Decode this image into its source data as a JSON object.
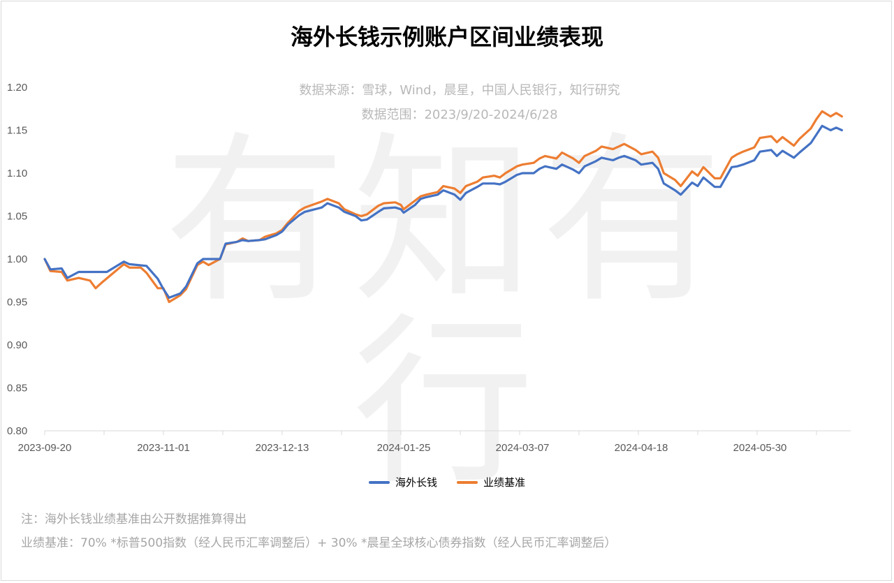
{
  "title": "海外长钱示例账户区间业绩表现",
  "source_line": "数据来源：雪球，Wind，晨星，中国人民银行，知行研究",
  "range_line": "数据范围：2023/9/20-2024/6/28",
  "watermark": "有知有行",
  "notes": [
    "注：海外长钱业绩基准由公开数据推算得出",
    "业绩基准：70% *标普500指数（经人民币汇率调整后）+ 30% *晨星全球核心债券指数（经人民币汇率调整后）"
  ],
  "colors": {
    "haiwai": "#4472c4",
    "benchmark": "#ed7d31",
    "axis": "#d9d9d9",
    "label": "#595959"
  },
  "chart_data": {
    "type": "line",
    "title": "海外长钱示例账户区间业绩表现",
    "xlabel": "",
    "ylabel": "",
    "x_range": [
      "2023-09-20",
      "2024-06-28"
    ],
    "x_ticks": [
      "2023-09-20",
      "2023-11-01",
      "2023-12-13",
      "2024-01-25",
      "2024-03-07",
      "2024-04-18",
      "2024-05-30"
    ],
    "ylim": [
      0.8,
      1.2
    ],
    "y_ticks": [
      "0.80",
      "0.85",
      "0.90",
      "0.95",
      "1.00",
      "1.05",
      "1.10",
      "1.15",
      "1.20"
    ],
    "grid": false,
    "legend_position": "bottom",
    "series": [
      {
        "name": "海外长钱",
        "color": "#4472c4",
        "points": [
          [
            "2023-09-20",
            1.0
          ],
          [
            "2023-09-22",
            0.988
          ],
          [
            "2023-09-26",
            0.989
          ],
          [
            "2023-09-28",
            0.978
          ],
          [
            "2023-10-02",
            0.985
          ],
          [
            "2023-10-12",
            0.985
          ],
          [
            "2023-10-18",
            0.997
          ],
          [
            "2023-10-20",
            0.994
          ],
          [
            "2023-10-26",
            0.992
          ],
          [
            "2023-10-30",
            0.977
          ],
          [
            "2023-11-01",
            0.965
          ],
          [
            "2023-11-03",
            0.955
          ],
          [
            "2023-11-07",
            0.96
          ],
          [
            "2023-11-09",
            0.968
          ],
          [
            "2023-11-13",
            0.995
          ],
          [
            "2023-11-15",
            1.0
          ],
          [
            "2023-11-17",
            1.0
          ],
          [
            "2023-11-21",
            1.0
          ],
          [
            "2023-11-23",
            1.018
          ],
          [
            "2023-11-27",
            1.02
          ],
          [
            "2023-11-29",
            1.022
          ],
          [
            "2023-12-01",
            1.021
          ],
          [
            "2023-12-05",
            1.022
          ],
          [
            "2023-12-07",
            1.023
          ],
          [
            "2023-12-11",
            1.028
          ],
          [
            "2023-12-13",
            1.032
          ],
          [
            "2023-12-15",
            1.04
          ],
          [
            "2023-12-19",
            1.051
          ],
          [
            "2023-12-21",
            1.055
          ],
          [
            "2023-12-27",
            1.06
          ],
          [
            "2023-12-29",
            1.065
          ],
          [
            "2024-01-02",
            1.06
          ],
          [
            "2024-01-04",
            1.055
          ],
          [
            "2024-01-08",
            1.05
          ],
          [
            "2024-01-10",
            1.045
          ],
          [
            "2024-01-12",
            1.046
          ],
          [
            "2024-01-16",
            1.055
          ],
          [
            "2024-01-18",
            1.059
          ],
          [
            "2024-01-22",
            1.06
          ],
          [
            "2024-01-24",
            1.058
          ],
          [
            "2024-01-25",
            1.054
          ],
          [
            "2024-01-29",
            1.063
          ],
          [
            "2024-01-31",
            1.07
          ],
          [
            "2024-02-02",
            1.072
          ],
          [
            "2024-02-06",
            1.075
          ],
          [
            "2024-02-08",
            1.08
          ],
          [
            "2024-02-12",
            1.075
          ],
          [
            "2024-02-14",
            1.069
          ],
          [
            "2024-02-16",
            1.077
          ],
          [
            "2024-02-20",
            1.084
          ],
          [
            "2024-02-22",
            1.088
          ],
          [
            "2024-02-26",
            1.088
          ],
          [
            "2024-02-28",
            1.087
          ],
          [
            "2024-03-01",
            1.09
          ],
          [
            "2024-03-05",
            1.098
          ],
          [
            "2024-03-07",
            1.1
          ],
          [
            "2024-03-11",
            1.1
          ],
          [
            "2024-03-13",
            1.105
          ],
          [
            "2024-03-15",
            1.108
          ],
          [
            "2024-03-19",
            1.105
          ],
          [
            "2024-03-21",
            1.11
          ],
          [
            "2024-03-25",
            1.104
          ],
          [
            "2024-03-27",
            1.1
          ],
          [
            "2024-03-29",
            1.108
          ],
          [
            "2024-04-02",
            1.114
          ],
          [
            "2024-04-04",
            1.118
          ],
          [
            "2024-04-08",
            1.115
          ],
          [
            "2024-04-10",
            1.118
          ],
          [
            "2024-04-12",
            1.12
          ],
          [
            "2024-04-16",
            1.115
          ],
          [
            "2024-04-18",
            1.11
          ],
          [
            "2024-04-22",
            1.112
          ],
          [
            "2024-04-24",
            1.105
          ],
          [
            "2024-04-26",
            1.088
          ],
          [
            "2024-04-30",
            1.08
          ],
          [
            "2024-05-02",
            1.075
          ],
          [
            "2024-05-06",
            1.089
          ],
          [
            "2024-05-08",
            1.085
          ],
          [
            "2024-05-10",
            1.095
          ],
          [
            "2024-05-14",
            1.084
          ],
          [
            "2024-05-16",
            1.084
          ],
          [
            "2024-05-20",
            1.107
          ],
          [
            "2024-05-22",
            1.108
          ],
          [
            "2024-05-24",
            1.11
          ],
          [
            "2024-05-28",
            1.115
          ],
          [
            "2024-05-30",
            1.125
          ],
          [
            "2024-06-03",
            1.127
          ],
          [
            "2024-06-05",
            1.12
          ],
          [
            "2024-06-07",
            1.126
          ],
          [
            "2024-06-11",
            1.118
          ],
          [
            "2024-06-13",
            1.124
          ],
          [
            "2024-06-17",
            1.135
          ],
          [
            "2024-06-19",
            1.145
          ],
          [
            "2024-06-21",
            1.155
          ],
          [
            "2024-06-24",
            1.15
          ],
          [
            "2024-06-26",
            1.153
          ],
          [
            "2024-06-28",
            1.15
          ]
        ]
      },
      {
        "name": "业绩基准",
        "color": "#ed7d31",
        "points": [
          [
            "2023-09-20",
            1.0
          ],
          [
            "2023-09-22",
            0.986
          ],
          [
            "2023-09-26",
            0.985
          ],
          [
            "2023-09-28",
            0.975
          ],
          [
            "2023-10-02",
            0.978
          ],
          [
            "2023-10-06",
            0.975
          ],
          [
            "2023-10-08",
            0.966
          ],
          [
            "2023-10-10",
            0.972
          ],
          [
            "2023-10-14",
            0.983
          ],
          [
            "2023-10-18",
            0.994
          ],
          [
            "2023-10-20",
            0.99
          ],
          [
            "2023-10-24",
            0.99
          ],
          [
            "2023-10-26",
            0.984
          ],
          [
            "2023-10-30",
            0.966
          ],
          [
            "2023-11-01",
            0.966
          ],
          [
            "2023-11-03",
            0.95
          ],
          [
            "2023-11-07",
            0.958
          ],
          [
            "2023-11-09",
            0.965
          ],
          [
            "2023-11-13",
            0.993
          ],
          [
            "2023-11-15",
            0.997
          ],
          [
            "2023-11-17",
            0.993
          ],
          [
            "2023-11-21",
            1.0
          ],
          [
            "2023-11-23",
            1.017
          ],
          [
            "2023-11-27",
            1.02
          ],
          [
            "2023-11-29",
            1.024
          ],
          [
            "2023-12-01",
            1.021
          ],
          [
            "2023-12-05",
            1.022
          ],
          [
            "2023-12-07",
            1.026
          ],
          [
            "2023-12-11",
            1.03
          ],
          [
            "2023-12-13",
            1.034
          ],
          [
            "2023-12-15",
            1.042
          ],
          [
            "2023-12-19",
            1.056
          ],
          [
            "2023-12-21",
            1.06
          ],
          [
            "2023-12-27",
            1.067
          ],
          [
            "2023-12-29",
            1.07
          ],
          [
            "2024-01-02",
            1.065
          ],
          [
            "2024-01-04",
            1.058
          ],
          [
            "2024-01-08",
            1.052
          ],
          [
            "2024-01-10",
            1.05
          ],
          [
            "2024-01-12",
            1.052
          ],
          [
            "2024-01-16",
            1.062
          ],
          [
            "2024-01-18",
            1.065
          ],
          [
            "2024-01-22",
            1.066
          ],
          [
            "2024-01-24",
            1.063
          ],
          [
            "2024-01-25",
            1.058
          ],
          [
            "2024-01-29",
            1.068
          ],
          [
            "2024-01-31",
            1.073
          ],
          [
            "2024-02-02",
            1.075
          ],
          [
            "2024-02-06",
            1.078
          ],
          [
            "2024-02-08",
            1.085
          ],
          [
            "2024-02-12",
            1.082
          ],
          [
            "2024-02-14",
            1.077
          ],
          [
            "2024-02-16",
            1.085
          ],
          [
            "2024-02-20",
            1.09
          ],
          [
            "2024-02-22",
            1.095
          ],
          [
            "2024-02-26",
            1.097
          ],
          [
            "2024-02-28",
            1.095
          ],
          [
            "2024-03-01",
            1.1
          ],
          [
            "2024-03-05",
            1.108
          ],
          [
            "2024-03-07",
            1.11
          ],
          [
            "2024-03-11",
            1.112
          ],
          [
            "2024-03-13",
            1.117
          ],
          [
            "2024-03-15",
            1.12
          ],
          [
            "2024-03-19",
            1.117
          ],
          [
            "2024-03-21",
            1.124
          ],
          [
            "2024-03-25",
            1.117
          ],
          [
            "2024-03-27",
            1.112
          ],
          [
            "2024-03-29",
            1.12
          ],
          [
            "2024-04-02",
            1.126
          ],
          [
            "2024-04-04",
            1.131
          ],
          [
            "2024-04-08",
            1.128
          ],
          [
            "2024-04-10",
            1.131
          ],
          [
            "2024-04-12",
            1.134
          ],
          [
            "2024-04-16",
            1.127
          ],
          [
            "2024-04-18",
            1.122
          ],
          [
            "2024-04-22",
            1.125
          ],
          [
            "2024-04-24",
            1.118
          ],
          [
            "2024-04-26",
            1.1
          ],
          [
            "2024-04-30",
            1.092
          ],
          [
            "2024-05-02",
            1.085
          ],
          [
            "2024-05-06",
            1.102
          ],
          [
            "2024-05-08",
            1.097
          ],
          [
            "2024-05-10",
            1.107
          ],
          [
            "2024-05-14",
            1.094
          ],
          [
            "2024-05-16",
            1.094
          ],
          [
            "2024-05-20",
            1.118
          ],
          [
            "2024-05-22",
            1.122
          ],
          [
            "2024-05-24",
            1.125
          ],
          [
            "2024-05-28",
            1.13
          ],
          [
            "2024-05-30",
            1.141
          ],
          [
            "2024-06-03",
            1.143
          ],
          [
            "2024-06-05",
            1.136
          ],
          [
            "2024-06-07",
            1.142
          ],
          [
            "2024-06-11",
            1.132
          ],
          [
            "2024-06-13",
            1.14
          ],
          [
            "2024-06-17",
            1.152
          ],
          [
            "2024-06-19",
            1.163
          ],
          [
            "2024-06-21",
            1.172
          ],
          [
            "2024-06-24",
            1.166
          ],
          [
            "2024-06-26",
            1.17
          ],
          [
            "2024-06-28",
            1.166
          ]
        ]
      }
    ]
  }
}
